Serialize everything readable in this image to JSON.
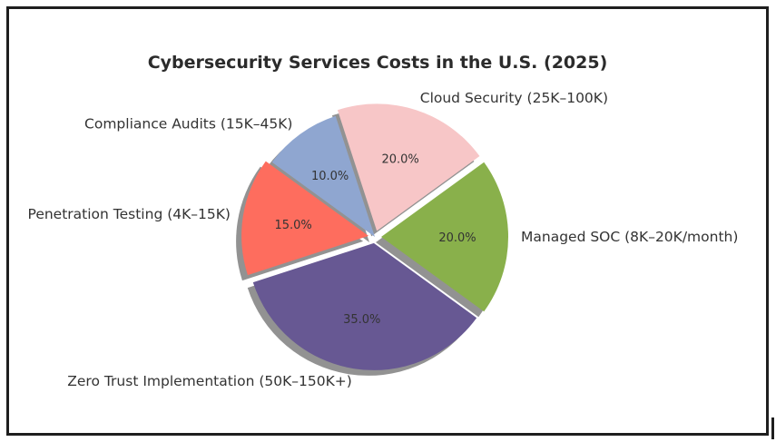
{
  "chart_data": {
    "type": "pie",
    "title": "Cybersecurity Services Costs in the U.S. (2025)",
    "autopct_format": "{:.1f}%",
    "shadow": true,
    "start_angle_deg": 36,
    "slices": [
      {
        "label": "Cloud Security (25K–100K)",
        "value": 20.0,
        "color": "#f7c6c7",
        "explode": 0.05
      },
      {
        "label": "Compliance Audits (15K–45K)",
        "value": 10.0,
        "color": "#8fa6d0",
        "explode": 0.0
      },
      {
        "label": "Penetration Testing (4K–15K)",
        "value": 15.0,
        "color": "#fe6d5e",
        "explode": 0.05
      },
      {
        "label": "Zero Trust Implementation (50K–150K+)",
        "value": 35.0,
        "color": "#675893",
        "explode": 0.05
      },
      {
        "label": "Managed SOC (8K–20K/month)",
        "value": 20.0,
        "color": "#89b04b",
        "explode": 0.05
      }
    ]
  }
}
